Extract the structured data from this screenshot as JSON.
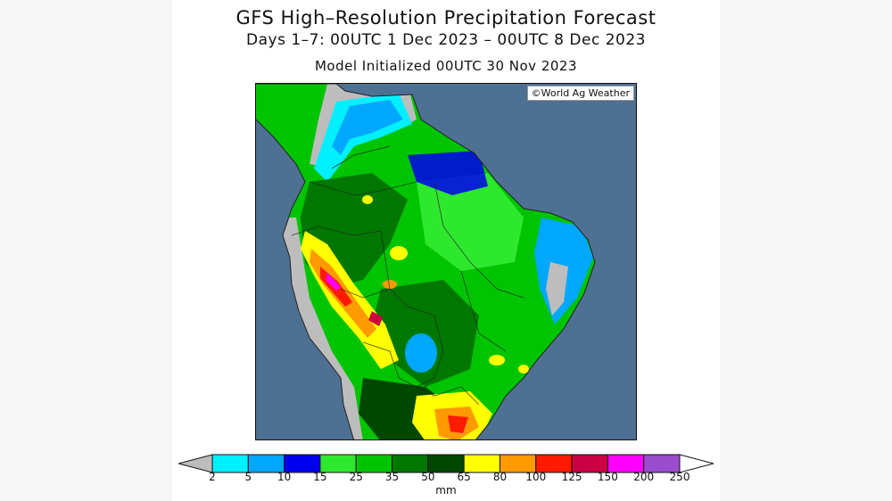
{
  "title": "GFS High–Resolution Precipitation Forecast",
  "subtitle": "Days 1–7: 00UTC 1 Dec 2023 – 00UTC 8 Dec 2023",
  "init_line": "Model Initialized 00UTC 30 Nov 2023",
  "credit": "©World Ag Weather",
  "legend": {
    "unit": "mm",
    "ticks": [
      "2",
      "5",
      "10",
      "15",
      "25",
      "35",
      "50",
      "65",
      "80",
      "100",
      "125",
      "150",
      "200",
      "250"
    ],
    "colors": {
      "below": "#bdbdbd",
      "bins": [
        "#00f0ff",
        "#00a8ff",
        "#0000ee",
        "#2ee82e",
        "#00c400",
        "#007800",
        "#004800",
        "#ffff00",
        "#ff9a00",
        "#ff1a00",
        "#cc0044",
        "#ff00ff",
        "#9a4ccc"
      ],
      "above": "#ffffff"
    }
  },
  "colors": {
    "ocean": "#4e7092",
    "land_dry": "#bdbdbd"
  }
}
